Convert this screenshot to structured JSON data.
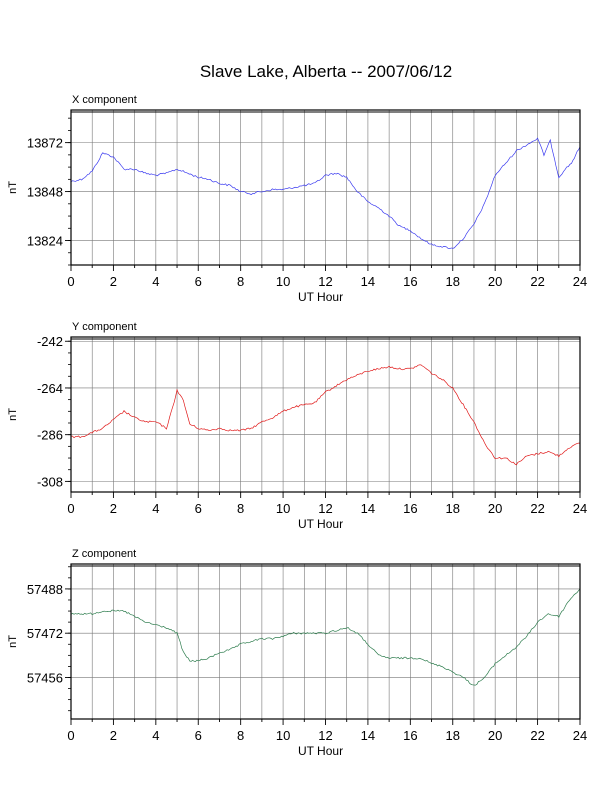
{
  "title": "Slave Lake, Alberta -- 2007/06/12",
  "chart_data": [
    {
      "type": "line",
      "panel_label": "X component",
      "xlabel": "UT Hour",
      "ylabel": "nT",
      "xlim": [
        0,
        24
      ],
      "ylim": [
        13812,
        13888
      ],
      "xticks": [
        0,
        2,
        4,
        6,
        8,
        10,
        12,
        14,
        16,
        18,
        20,
        22,
        24
      ],
      "yticks": [
        13824,
        13848,
        13872
      ],
      "grid": true,
      "color": "#3b3bf0",
      "series": [
        {
          "x": [
            0,
            0.5,
            1,
            1.5,
            2,
            2.5,
            3,
            3.5,
            4,
            4.5,
            5,
            5.5,
            6,
            6.5,
            7,
            7.5,
            8,
            8.5,
            9,
            9.5,
            10,
            10.5,
            11,
            11.5,
            12,
            12.5,
            13,
            13.5,
            14,
            14.5,
            15,
            15.5,
            16,
            16.5,
            17,
            17.5,
            18,
            18.5,
            19,
            19.5,
            20,
            20.5,
            21,
            21.5,
            22,
            22.3,
            22.6,
            23,
            23.3,
            23.6,
            24
          ],
          "values": [
            13853,
            13854,
            13858,
            13867,
            13865,
            13859,
            13859,
            13857,
            13856,
            13857,
            13859,
            13857,
            13855,
            13854,
            13852,
            13851,
            13848,
            13847,
            13848,
            13849,
            13849,
            13850,
            13851,
            13852,
            13856,
            13857,
            13855,
            13848,
            13843,
            13840,
            13836,
            13831,
            13829,
            13825,
            13822,
            13821,
            13820,
            13825,
            13832,
            13842,
            13856,
            13862,
            13868,
            13871,
            13874,
            13866,
            13873,
            13855,
            13859,
            13862,
            13870
          ]
        }
      ]
    },
    {
      "type": "line",
      "panel_label": "Y component",
      "xlabel": "UT Hour",
      "ylabel": "nT",
      "xlim": [
        0,
        24
      ],
      "ylim": [
        -313,
        -240
      ],
      "xticks": [
        0,
        2,
        4,
        6,
        8,
        10,
        12,
        14,
        16,
        18,
        20,
        22,
        24
      ],
      "yticks": [
        -242,
        -264,
        -286,
        -308
      ],
      "grid": true,
      "color": "#e01818",
      "series": [
        {
          "x": [
            0,
            0.5,
            1,
            1.5,
            2,
            2.5,
            3,
            3.5,
            4,
            4.5,
            4.8,
            5,
            5.3,
            5.6,
            6,
            6.5,
            7,
            7.5,
            8,
            8.5,
            9,
            9.5,
            10,
            10.5,
            11,
            11.5,
            12,
            12.5,
            13,
            13.5,
            14,
            14.5,
            15,
            15.5,
            16,
            16.5,
            17,
            17.5,
            18,
            18.5,
            19,
            19.5,
            20,
            20.5,
            21,
            21.5,
            22,
            22.5,
            23,
            23.5,
            24
          ],
          "values": [
            -287,
            -287,
            -285,
            -283,
            -279,
            -275,
            -278,
            -280,
            -280,
            -283,
            -273,
            -265,
            -270,
            -281,
            -283,
            -284,
            -283,
            -284,
            -284,
            -283,
            -280,
            -278,
            -275,
            -273,
            -272,
            -271,
            -266,
            -263,
            -260,
            -258,
            -256,
            -255,
            -254,
            -255,
            -255,
            -253,
            -257,
            -260,
            -264,
            -272,
            -280,
            -290,
            -297,
            -297,
            -300,
            -296,
            -295,
            -294,
            -296,
            -292,
            -290
          ]
        }
      ]
    },
    {
      "type": "line",
      "panel_label": "Z component",
      "xlabel": "UT Hour",
      "ylabel": "nT",
      "xlim": [
        0,
        24
      ],
      "ylim": [
        57441,
        57497
      ],
      "xticks": [
        0,
        2,
        4,
        6,
        8,
        10,
        12,
        14,
        16,
        18,
        20,
        22,
        24
      ],
      "yticks": [
        57456,
        57472,
        57488
      ],
      "grid": true,
      "color": "#2e7d4e",
      "series": [
        {
          "x": [
            0,
            0.5,
            1,
            1.5,
            2,
            2.5,
            3,
            3.5,
            4,
            4.5,
            5,
            5.3,
            5.6,
            6,
            6.5,
            7,
            7.5,
            8,
            8.5,
            9,
            9.5,
            10,
            10.5,
            11,
            11.5,
            12,
            12.5,
            13,
            13.5,
            14,
            14.5,
            15,
            15.5,
            16,
            16.5,
            17,
            17.5,
            18,
            18.5,
            19,
            19.5,
            20,
            20.5,
            21,
            21.5,
            22,
            22.5,
            23,
            23.5,
            24
          ],
          "values": [
            57479,
            57479,
            57479,
            57480,
            57480,
            57480,
            57478,
            57476,
            57475,
            57474,
            57472,
            57465,
            57462,
            57462,
            57463,
            57465,
            57466,
            57468,
            57469,
            57470,
            57470,
            57471,
            57472,
            57472,
            57472,
            57472,
            57473,
            57474,
            57472,
            57468,
            57464,
            57463,
            57463,
            57463,
            57463,
            57461,
            57460,
            57458,
            57456,
            57453,
            57456,
            57461,
            57464,
            57467,
            57471,
            57476,
            57479,
            57478,
            57484,
            57488
          ]
        }
      ]
    }
  ]
}
